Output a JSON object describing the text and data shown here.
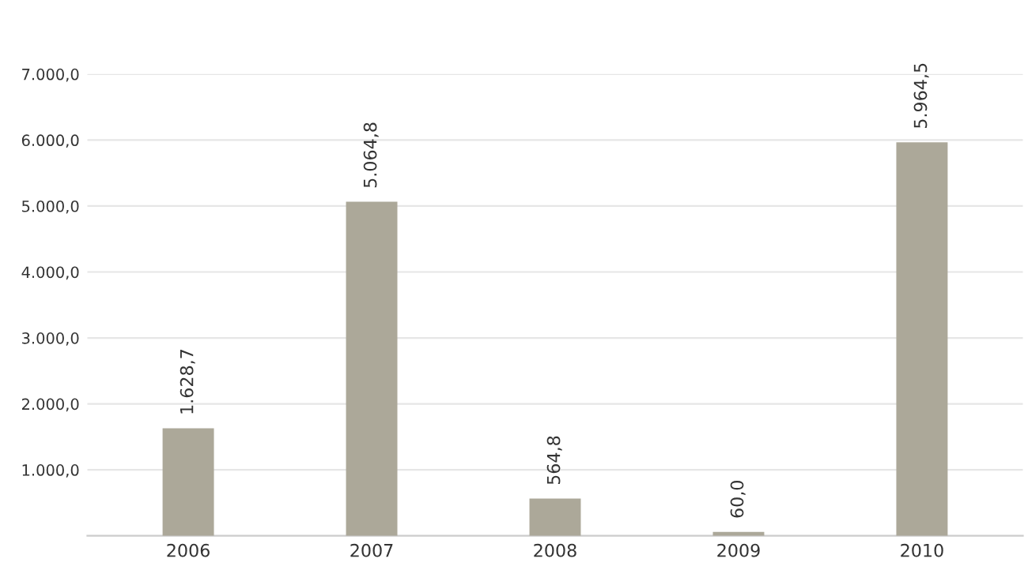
{
  "chart_data": {
    "type": "bar",
    "categories": [
      "2006",
      "2007",
      "2008",
      "2009",
      "2010"
    ],
    "values": [
      1628.7,
      5064.8,
      564.8,
      60.0,
      5964.5
    ],
    "value_labels": [
      "1.628,7",
      "5.064,8",
      "564,8",
      "60,0",
      "5.964,5"
    ],
    "color": "#aca899",
    "ylim": [
      0,
      7000
    ],
    "yticks": [
      {
        "value": 1000,
        "label": "1.000,0"
      },
      {
        "value": 2000,
        "label": "2.000,0"
      },
      {
        "value": 3000,
        "label": "3.000,0"
      },
      {
        "value": 4000,
        "label": "4.000,0"
      },
      {
        "value": 5000,
        "label": "5.000,0"
      },
      {
        "value": 6000,
        "label": "6.000,0"
      },
      {
        "value": 7000,
        "label": "7.000,0"
      }
    ],
    "grid": "y"
  }
}
